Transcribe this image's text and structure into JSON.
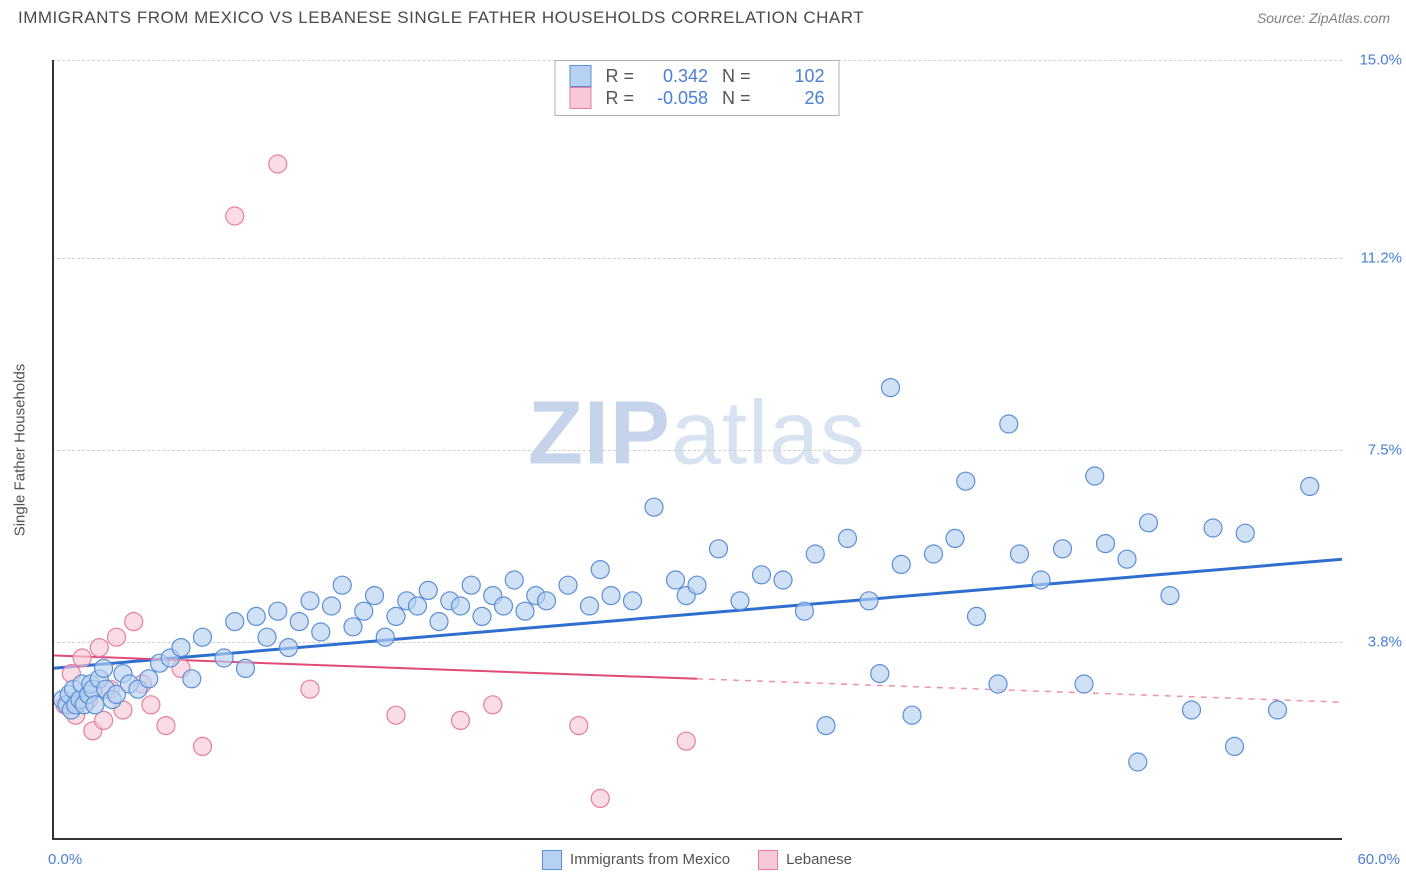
{
  "title": "IMMIGRANTS FROM MEXICO VS LEBANESE SINGLE FATHER HOUSEHOLDS CORRELATION CHART",
  "source": "Source: ZipAtlas.com",
  "y_label": "Single Father Households",
  "watermark_a": "ZIP",
  "watermark_b": "atlas",
  "chart": {
    "type": "scatter",
    "background": "#ffffff",
    "grid_color": "#d0d0d0",
    "axis_color": "#333333",
    "xmin": 0.0,
    "xmax": 60.0,
    "ymin": 0.0,
    "ymax": 15.0,
    "x_tick_min_label": "0.0%",
    "x_tick_max_label": "60.0%",
    "y_ticks": [
      {
        "v": 3.8,
        "label": "3.8%"
      },
      {
        "v": 7.5,
        "label": "7.5%"
      },
      {
        "v": 11.2,
        "label": "11.2%"
      },
      {
        "v": 15.0,
        "label": "15.0%"
      }
    ],
    "series": [
      {
        "name": "Immigrants from Mexico",
        "marker_fill": "#b7d1f0",
        "marker_stroke": "#5a8fd6",
        "marker_r": 9,
        "line_color": "#2f6fd0",
        "line_width": 3,
        "R": "0.342",
        "N": "102",
        "trend": {
          "x1": 0,
          "y1": 3.3,
          "x2": 60,
          "y2": 5.4,
          "solid_until": 60
        },
        "points": [
          [
            0.5,
            2.7
          ],
          [
            0.7,
            2.6
          ],
          [
            0.8,
            2.8
          ],
          [
            0.9,
            2.5
          ],
          [
            1.0,
            2.9
          ],
          [
            1.1,
            2.6
          ],
          [
            1.3,
            2.7
          ],
          [
            1.4,
            3.0
          ],
          [
            1.5,
            2.6
          ],
          [
            1.7,
            2.8
          ],
          [
            1.8,
            3.0
          ],
          [
            1.9,
            2.9
          ],
          [
            2.0,
            2.6
          ],
          [
            2.2,
            3.1
          ],
          [
            2.4,
            3.3
          ],
          [
            2.5,
            2.9
          ],
          [
            2.8,
            2.7
          ],
          [
            3.0,
            2.8
          ],
          [
            3.3,
            3.2
          ],
          [
            3.6,
            3.0
          ],
          [
            4.0,
            2.9
          ],
          [
            4.5,
            3.1
          ],
          [
            5.0,
            3.4
          ],
          [
            5.5,
            3.5
          ],
          [
            6.0,
            3.7
          ],
          [
            6.5,
            3.1
          ],
          [
            7.0,
            3.9
          ],
          [
            8.0,
            3.5
          ],
          [
            8.5,
            4.2
          ],
          [
            9.0,
            3.3
          ],
          [
            9.5,
            4.3
          ],
          [
            10.0,
            3.9
          ],
          [
            10.5,
            4.4
          ],
          [
            11.0,
            3.7
          ],
          [
            11.5,
            4.2
          ],
          [
            12.0,
            4.6
          ],
          [
            12.5,
            4.0
          ],
          [
            13.0,
            4.5
          ],
          [
            13.5,
            4.9
          ],
          [
            14.0,
            4.1
          ],
          [
            14.5,
            4.4
          ],
          [
            15.0,
            4.7
          ],
          [
            15.5,
            3.9
          ],
          [
            16.0,
            4.3
          ],
          [
            16.5,
            4.6
          ],
          [
            17.0,
            4.5
          ],
          [
            17.5,
            4.8
          ],
          [
            18.0,
            4.2
          ],
          [
            18.5,
            4.6
          ],
          [
            19.0,
            4.5
          ],
          [
            19.5,
            4.9
          ],
          [
            20.0,
            4.3
          ],
          [
            20.5,
            4.7
          ],
          [
            21.0,
            4.5
          ],
          [
            21.5,
            5.0
          ],
          [
            22.0,
            4.4
          ],
          [
            22.5,
            4.7
          ],
          [
            23.0,
            4.6
          ],
          [
            24.0,
            4.9
          ],
          [
            25.0,
            4.5
          ],
          [
            25.5,
            5.2
          ],
          [
            26.0,
            4.7
          ],
          [
            27.0,
            4.6
          ],
          [
            28.0,
            6.4
          ],
          [
            29.0,
            5.0
          ],
          [
            29.5,
            4.7
          ],
          [
            30.0,
            4.9
          ],
          [
            31.0,
            5.6
          ],
          [
            32.0,
            4.6
          ],
          [
            33.0,
            5.1
          ],
          [
            34.0,
            5.0
          ],
          [
            35.0,
            4.4
          ],
          [
            35.5,
            5.5
          ],
          [
            36.0,
            2.2
          ],
          [
            37.0,
            5.8
          ],
          [
            38.0,
            4.6
          ],
          [
            38.5,
            3.2
          ],
          [
            39.0,
            8.7
          ],
          [
            39.5,
            5.3
          ],
          [
            40.0,
            2.4
          ],
          [
            41.0,
            5.5
          ],
          [
            42.0,
            5.8
          ],
          [
            42.5,
            6.9
          ],
          [
            43.0,
            4.3
          ],
          [
            44.0,
            3.0
          ],
          [
            44.5,
            8.0
          ],
          [
            45.0,
            5.5
          ],
          [
            46.0,
            5.0
          ],
          [
            47.0,
            5.6
          ],
          [
            48.0,
            3.0
          ],
          [
            48.5,
            7.0
          ],
          [
            49.0,
            5.7
          ],
          [
            50.0,
            5.4
          ],
          [
            50.5,
            1.5
          ],
          [
            51.0,
            6.1
          ],
          [
            52.0,
            4.7
          ],
          [
            53.0,
            2.5
          ],
          [
            54.0,
            6.0
          ],
          [
            55.0,
            1.8
          ],
          [
            55.5,
            5.9
          ],
          [
            57.0,
            2.5
          ],
          [
            58.5,
            6.8
          ]
        ]
      },
      {
        "name": "Lebanese",
        "marker_fill": "#f7c9d6",
        "marker_stroke": "#e77ea0",
        "marker_r": 9,
        "line_color": "#e24a78",
        "line_width": 2,
        "R": "-0.058",
        "N": "26",
        "trend": {
          "x1": 0,
          "y1": 3.55,
          "x2": 60,
          "y2": 2.65,
          "solid_until": 30
        },
        "points": [
          [
            0.6,
            2.6
          ],
          [
            0.9,
            3.2
          ],
          [
            1.1,
            2.4
          ],
          [
            1.4,
            3.5
          ],
          [
            1.7,
            2.7
          ],
          [
            1.9,
            2.1
          ],
          [
            2.2,
            3.7
          ],
          [
            2.4,
            2.3
          ],
          [
            2.7,
            2.9
          ],
          [
            3.0,
            3.9
          ],
          [
            3.3,
            2.5
          ],
          [
            3.8,
            4.2
          ],
          [
            4.2,
            3.0
          ],
          [
            4.6,
            2.6
          ],
          [
            5.3,
            2.2
          ],
          [
            6.0,
            3.3
          ],
          [
            7.0,
            1.8
          ],
          [
            8.5,
            12.0
          ],
          [
            10.5,
            13.0
          ],
          [
            12.0,
            2.9
          ],
          [
            16.0,
            2.4
          ],
          [
            19.0,
            2.3
          ],
          [
            20.5,
            2.6
          ],
          [
            24.5,
            2.2
          ],
          [
            25.5,
            0.8
          ],
          [
            29.5,
            1.9
          ]
        ]
      }
    ]
  },
  "stats_labels": {
    "R": "R =",
    "N": "N ="
  },
  "x_legend": [
    {
      "label": "Immigrants from Mexico",
      "fill": "#b7d1f0",
      "stroke": "#5a8fd6"
    },
    {
      "label": "Lebanese",
      "fill": "#f7c9d6",
      "stroke": "#e77ea0"
    }
  ]
}
